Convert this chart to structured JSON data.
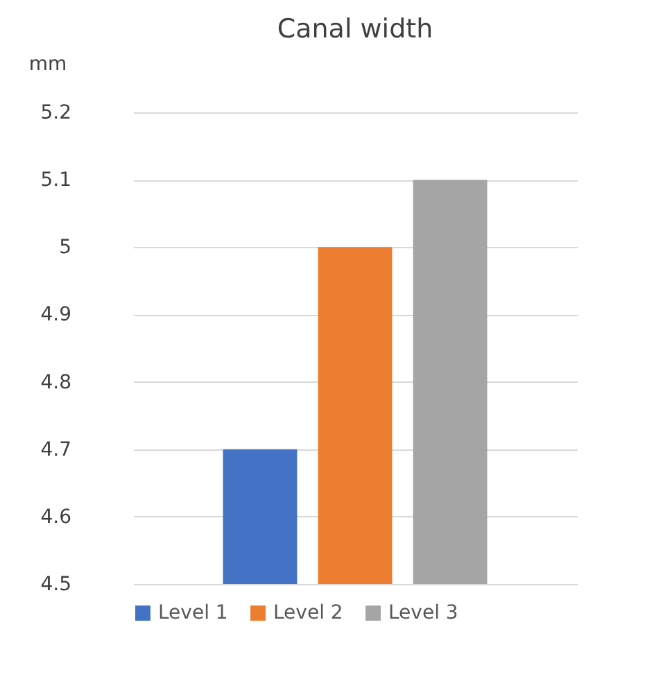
{
  "chart_data": {
    "type": "bar",
    "title": "Canal width",
    "ylabel": "mm",
    "categories": [
      null
    ],
    "series": [
      {
        "name": "Level 1",
        "color": "#4472c4",
        "values": [
          4.7
        ]
      },
      {
        "name": "Level 2",
        "color": "#ed7d31",
        "values": [
          5.0
        ]
      },
      {
        "name": "Level 3",
        "color": "#a5a5a5",
        "values": [
          5.1
        ]
      }
    ],
    "ylim": [
      4.5,
      5.2
    ],
    "yticks": [
      4.5,
      4.6,
      4.7,
      4.8,
      4.9,
      5,
      5.1,
      5.2
    ],
    "grid": "y",
    "legend": "bottom",
    "tick_labels": "y"
  }
}
